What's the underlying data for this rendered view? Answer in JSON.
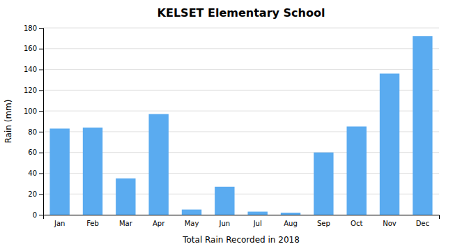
{
  "chart_data": {
    "type": "bar",
    "title": "KELSET Elementary School",
    "xlabel": "Total Rain Recorded in 2018",
    "ylabel": "Rain (mm)",
    "categories": [
      "Jan",
      "Feb",
      "Mar",
      "Apr",
      "May",
      "Jun",
      "Jul",
      "Aug",
      "Sep",
      "Oct",
      "Nov",
      "Dec"
    ],
    "values": [
      83,
      84,
      35,
      97,
      5,
      27,
      3,
      2,
      60,
      85,
      136,
      172
    ],
    "color": "#5aabf0",
    "ylim": [
      0,
      180
    ],
    "yticks": [
      0,
      20,
      40,
      60,
      80,
      100,
      120,
      140,
      160,
      180
    ],
    "grid": true
  }
}
